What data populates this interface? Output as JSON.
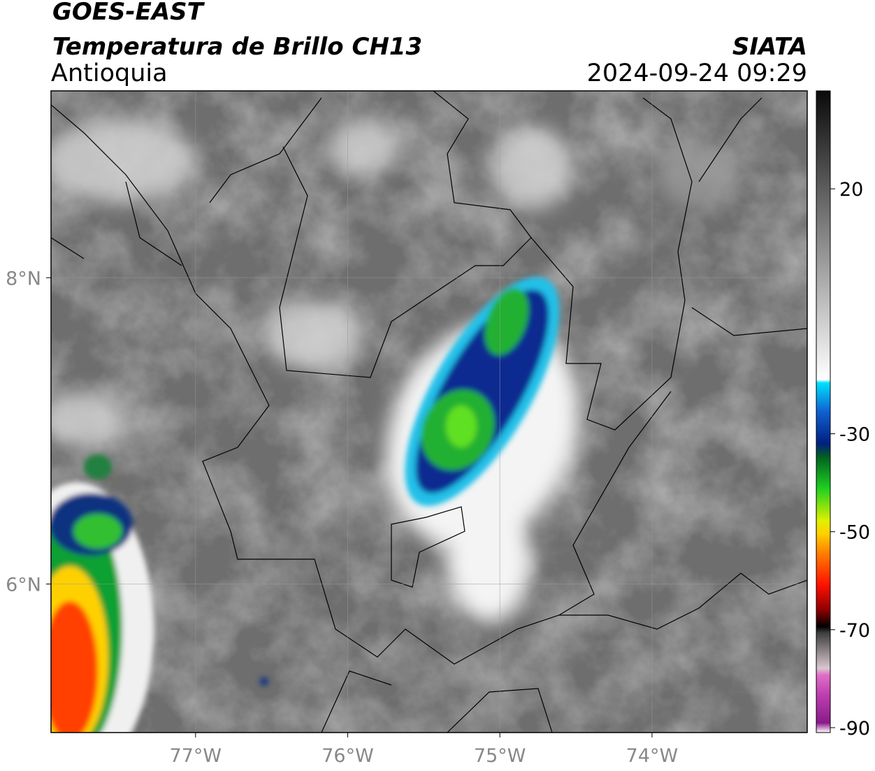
{
  "map": {
    "title": "GOES-EAST",
    "subtitle": "Temperatura de Brillo CH13",
    "region": "Antioquia",
    "source": "SIATA",
    "datetime": "2024-09-24 09:29",
    "xlim": [
      -77.95,
      -72.98
    ],
    "ylim": [
      5.03,
      9.22
    ],
    "xticks": [
      {
        "value": -77,
        "label": "77°W"
      },
      {
        "value": -76,
        "label": "76°W"
      },
      {
        "value": -75,
        "label": "75°W"
      },
      {
        "value": -74,
        "label": "74°W"
      }
    ],
    "yticks": [
      {
        "value": 8,
        "label": "8°N"
      },
      {
        "value": 6,
        "label": "6°N"
      }
    ],
    "grid": true,
    "colorbar": {
      "lim": [
        -91,
        40
      ],
      "ticks": [
        20,
        -30,
        -50,
        -70,
        -90
      ]
    }
  }
}
